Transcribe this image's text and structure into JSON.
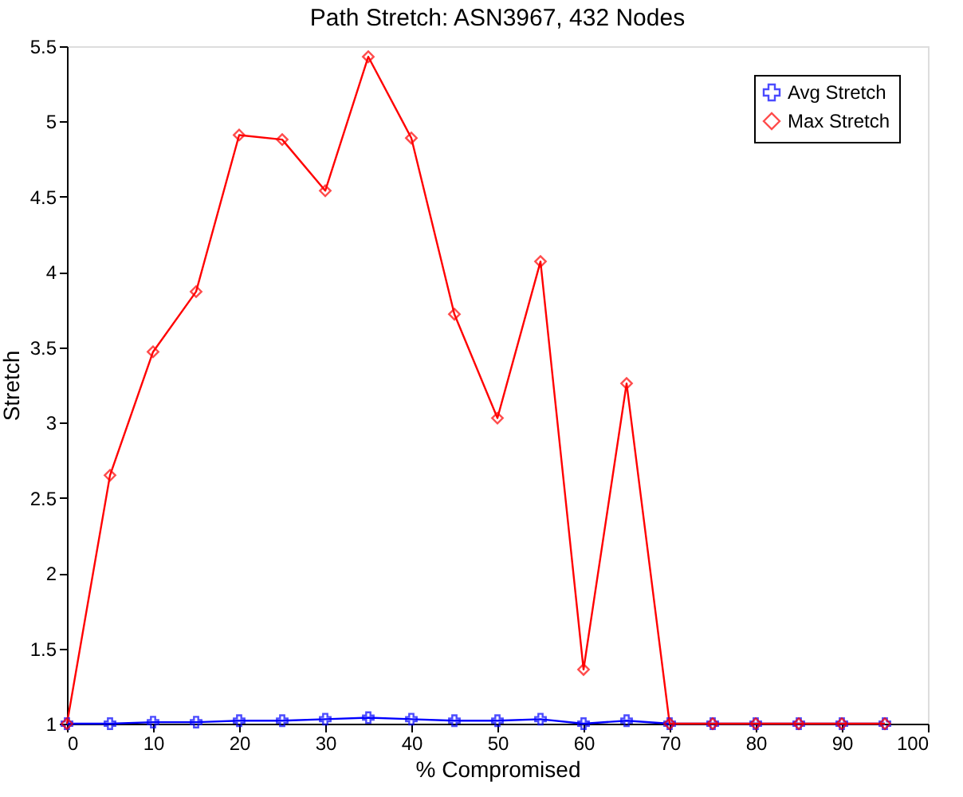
{
  "chart_data": {
    "type": "line",
    "title": "Path Stretch: ASN3967, 432 Nodes",
    "xlabel": "% Compromised",
    "ylabel": "Stretch",
    "x": [
      0,
      5,
      10,
      15,
      20,
      25,
      30,
      35,
      40,
      45,
      50,
      55,
      60,
      65,
      70,
      75,
      80,
      85,
      90,
      95
    ],
    "series": [
      {
        "name": "Avg Stretch",
        "color": "#0000ff",
        "marker": "cross",
        "values": [
          1,
          1,
          1.01,
          1.01,
          1.02,
          1.02,
          1.03,
          1.04,
          1.03,
          1.02,
          1.02,
          1.03,
          1.0,
          1.02,
          1.0,
          1.0,
          1.0,
          1.0,
          1.0,
          1.0
        ]
      },
      {
        "name": "Max Stretch",
        "color": "#ff0000",
        "marker": "diamond",
        "values": [
          1,
          2.65,
          3.47,
          3.87,
          4.91,
          4.88,
          4.54,
          5.43,
          4.89,
          3.72,
          3.03,
          4.07,
          1.36,
          3.26,
          1,
          1,
          1,
          1,
          1,
          1
        ]
      }
    ],
    "xlim": [
      0,
      100
    ],
    "xticks": [
      0,
      10,
      20,
      30,
      40,
      50,
      60,
      70,
      80,
      90,
      100
    ],
    "ylim": [
      1,
      5.5
    ],
    "yticks": [
      1,
      1.5,
      2,
      2.5,
      3,
      3.5,
      4,
      4.5,
      5,
      5.5
    ],
    "grid": false,
    "legend": "top right",
    "line_style": "solid"
  }
}
